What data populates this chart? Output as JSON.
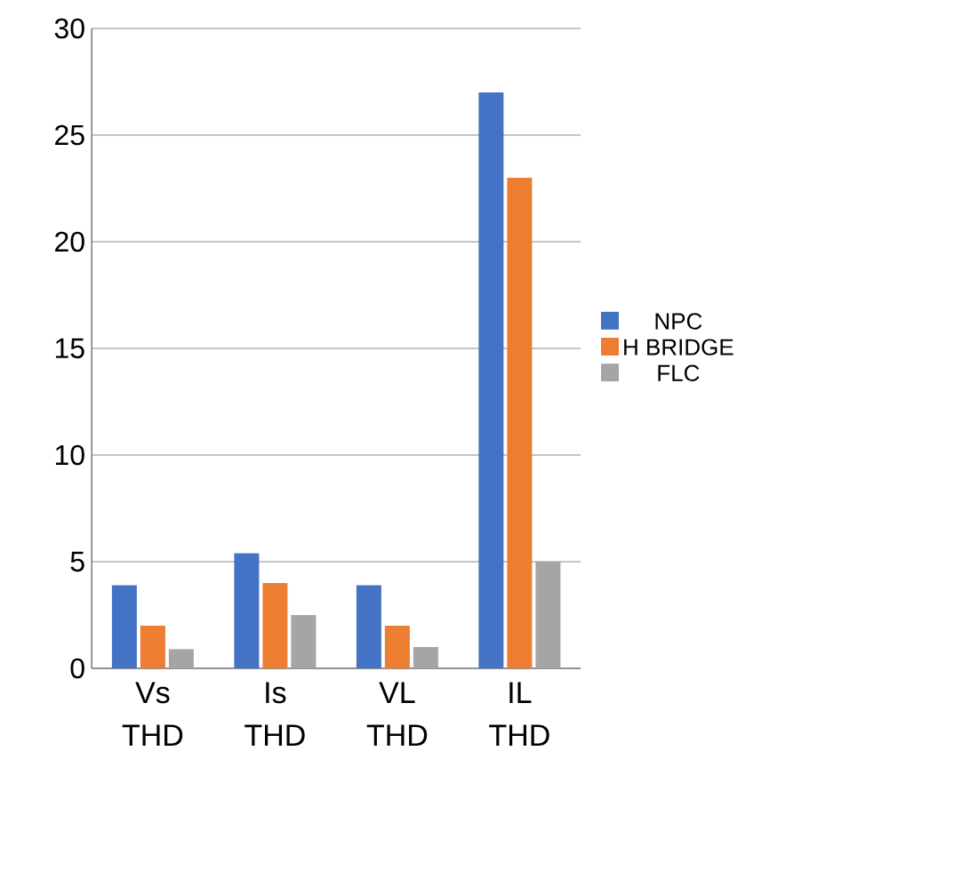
{
  "chart_data": {
    "type": "bar",
    "categories": [
      "Vs THD",
      "Is THD",
      "VL THD",
      "IL THD"
    ],
    "series": [
      {
        "name": "NPC",
        "color": "#4472c4",
        "values": [
          3.9,
          5.4,
          3.9,
          27
        ]
      },
      {
        "name": "H BRIDGE",
        "color": "#ed7d31",
        "values": [
          2,
          4,
          2,
          23
        ]
      },
      {
        "name": "FLC",
        "color": "#a5a5a5",
        "values": [
          0.9,
          2.5,
          1,
          5
        ]
      }
    ],
    "ylim": [
      0,
      30
    ],
    "yticks": [
      0,
      5,
      10,
      15,
      20,
      25,
      30
    ],
    "grid": "y",
    "legend": "right"
  }
}
